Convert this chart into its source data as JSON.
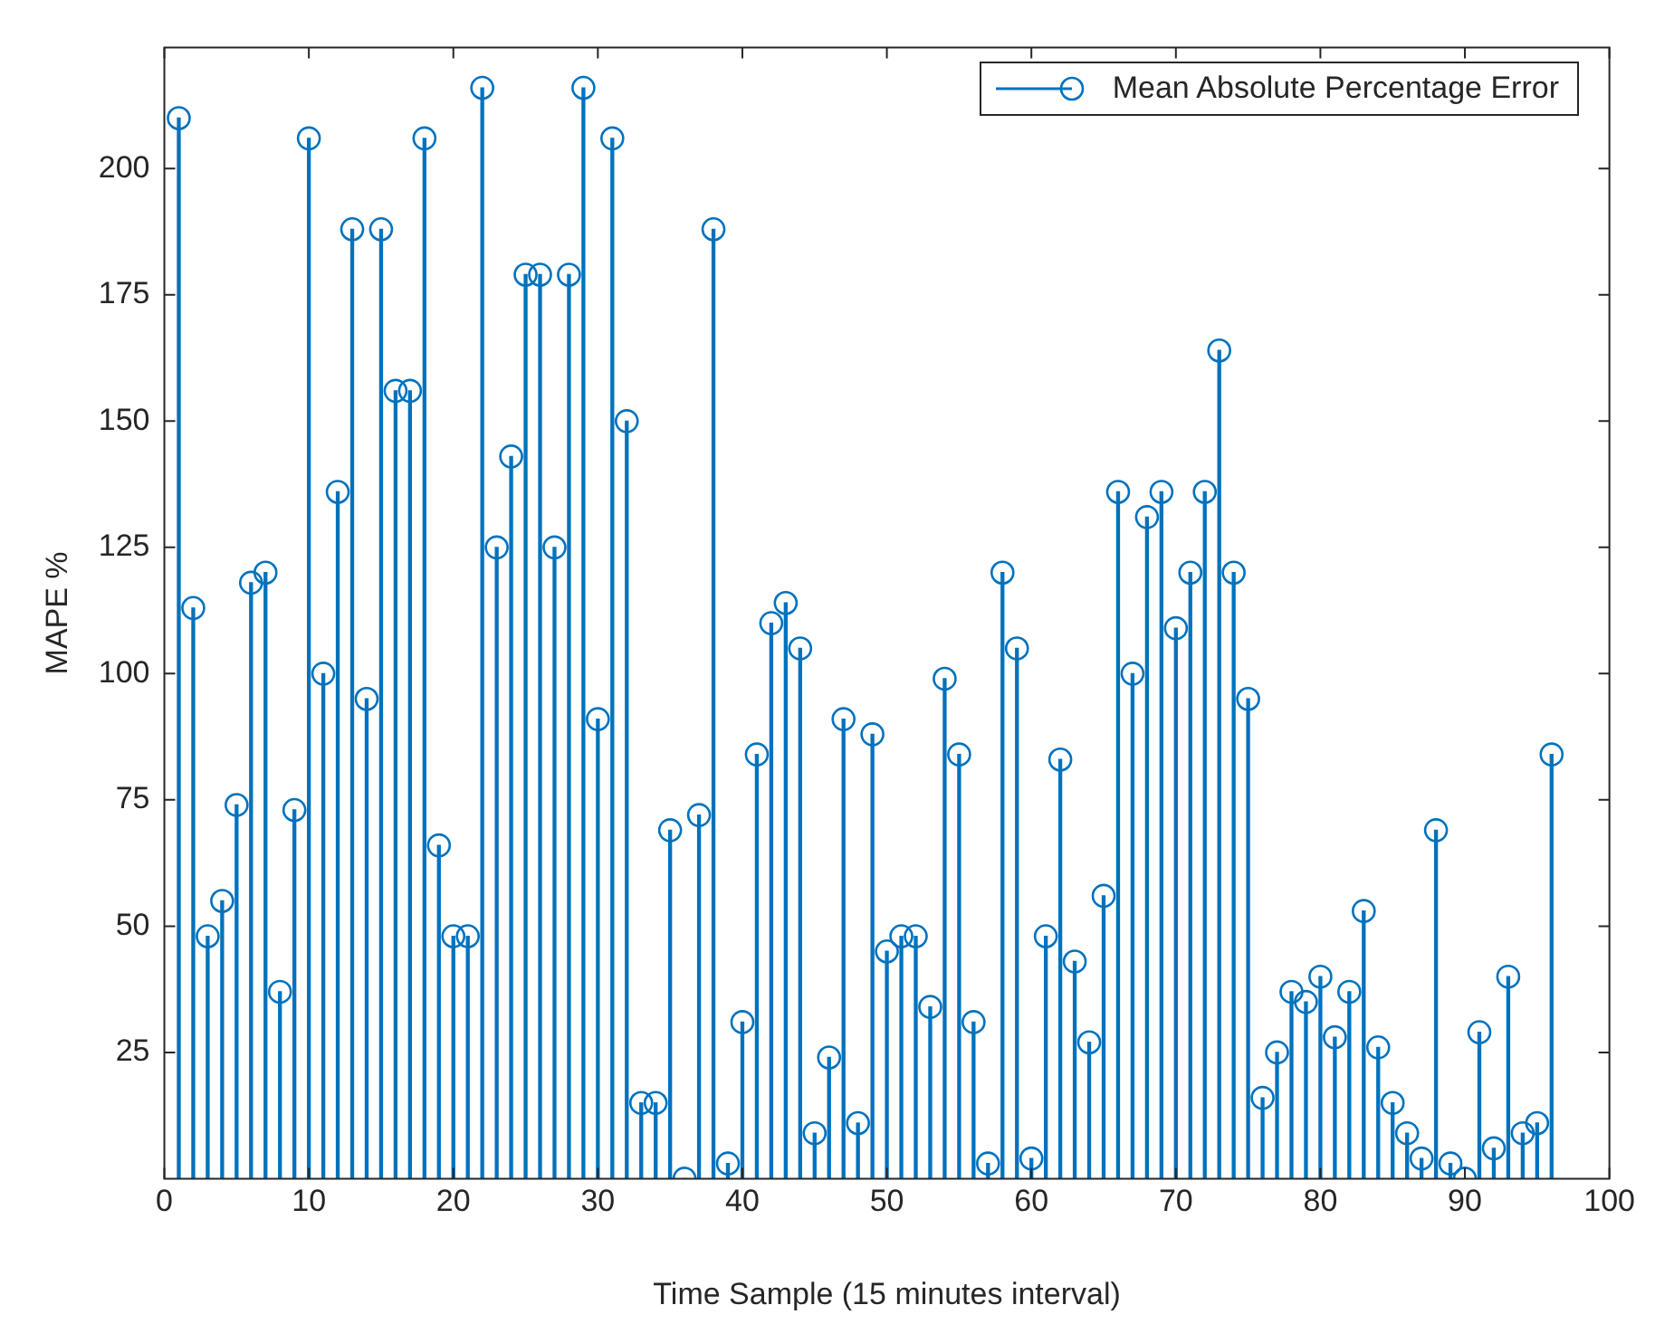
{
  "chart_data": {
    "type": "lollipop",
    "xlabel": "Time Sample (15 minutes interval)",
    "ylabel": "MAPE %",
    "x": [
      1,
      2,
      3,
      4,
      5,
      6,
      7,
      8,
      9,
      10,
      11,
      12,
      13,
      14,
      15,
      16,
      17,
      18,
      19,
      20,
      21,
      22,
      23,
      24,
      25,
      26,
      27,
      28,
      29,
      30,
      31,
      32,
      33,
      34,
      35,
      36,
      37,
      38,
      39,
      40,
      41,
      42,
      43,
      44,
      45,
      46,
      47,
      48,
      49,
      50,
      51,
      52,
      53,
      54,
      55,
      56,
      57,
      58,
      59,
      60,
      61,
      62,
      63,
      64,
      65,
      66,
      67,
      68,
      69,
      70,
      71,
      72,
      73,
      74,
      75,
      76,
      77,
      78,
      79,
      80,
      81,
      82,
      83,
      84,
      85,
      86,
      87,
      88,
      89,
      90,
      91,
      92,
      93,
      94,
      95,
      96
    ],
    "series": [
      {
        "name": "Mean Absolute Percentage Error",
        "color": "#0072bd",
        "values": [
          210,
          113,
          48,
          55,
          74,
          118,
          120,
          37,
          73,
          206,
          100,
          136,
          188,
          95,
          188,
          156,
          156,
          206,
          66,
          48,
          48,
          216,
          125,
          143,
          179,
          179,
          125,
          179,
          216,
          91,
          206,
          150,
          15,
          15,
          69,
          0,
          72,
          188,
          3,
          31,
          84,
          110,
          114,
          105,
          9,
          24,
          91,
          11,
          88,
          45,
          48,
          48,
          34,
          99,
          84,
          31,
          3,
          120,
          105,
          4,
          48,
          83,
          43,
          27,
          56,
          136,
          100,
          131,
          136,
          109,
          120,
          136,
          164,
          120,
          95,
          16,
          25,
          37,
          35,
          40,
          28,
          37,
          53,
          26,
          15,
          9,
          4,
          69,
          3,
          0,
          29,
          6,
          40,
          9,
          11,
          84
        ]
      }
    ],
    "xlim": [
      0,
      100
    ],
    "xticks": [
      0,
      10,
      20,
      30,
      40,
      50,
      60,
      70,
      80,
      90,
      100
    ],
    "ylim": [
      0,
      224
    ],
    "yticks": [
      25,
      50,
      75,
      100,
      125,
      150,
      175,
      200
    ],
    "marker": "circle",
    "legend": "top right",
    "grid": false
  }
}
